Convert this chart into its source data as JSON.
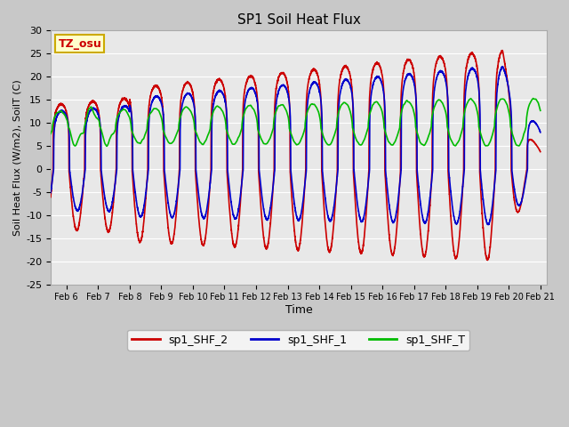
{
  "title": "SP1 Soil Heat Flux",
  "xlabel": "Time",
  "ylabel": "Soil Heat Flux (W/m2), SoilT (C)",
  "ylim": [
    -25,
    30
  ],
  "xlim_days": [
    5.5,
    21.2
  ],
  "xtick_positions": [
    6,
    7,
    8,
    9,
    10,
    11,
    12,
    13,
    14,
    15,
    16,
    17,
    18,
    19,
    20,
    21
  ],
  "xtick_labels": [
    "Feb 6",
    "Feb 7",
    "Feb 8",
    "Feb 9",
    "Feb 10",
    "Feb 11",
    "Feb 12",
    "Feb 13",
    "Feb 14",
    "Feb 15",
    "Feb 16",
    "Feb 17",
    "Feb 18",
    "Feb 19",
    "Feb 20",
    "Feb 21"
  ],
  "ytick_positions": [
    -25,
    -20,
    -15,
    -10,
    -5,
    0,
    5,
    10,
    15,
    20,
    25,
    30
  ],
  "plot_bg_color": "#e8e8e8",
  "grid_color": "white",
  "line_colors": {
    "sp1_SHF_2": "#cc0000",
    "sp1_SHF_1": "#0000cc",
    "sp1_SHF_T": "#00bb00"
  },
  "legend_labels": [
    "sp1_SHF_2",
    "sp1_SHF_1",
    "sp1_SHF_T"
  ],
  "tz_label": "TZ_osu",
  "tz_box_color": "#ffffcc",
  "tz_box_edge": "#ccaa00",
  "figsize": [
    6.4,
    4.8
  ],
  "dpi": 100
}
